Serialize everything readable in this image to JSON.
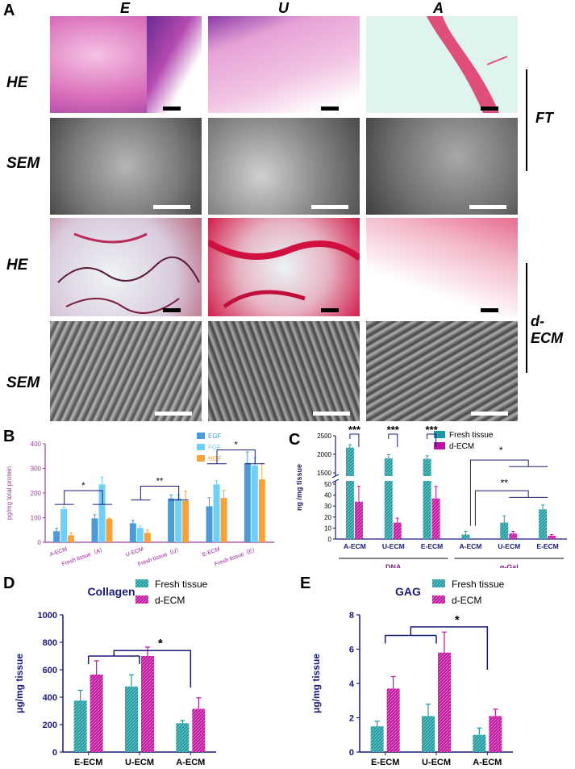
{
  "panel_letters": {
    "a": "A",
    "b": "B",
    "c": "C",
    "d": "D",
    "e": "E"
  },
  "panel_a": {
    "columns": [
      "E",
      "U",
      "A"
    ],
    "rows": [
      "HE",
      "SEM",
      "HE",
      "SEM"
    ],
    "groups": [
      "FT",
      "d-ECM"
    ],
    "colors": {
      "he_fresh": "#c94aa8",
      "he_fresh_light": "#f3b8de",
      "he_decell": "#e0306a",
      "he_bg": "#dff3ef",
      "sem_dark": "#3a3a3a",
      "sem_light": "#b8b8b8"
    }
  },
  "chart_data": [
    {
      "id": "B",
      "type": "bar",
      "ylabel": "pg/mg total protein",
      "ylim": [
        0,
        400
      ],
      "yticks": [
        0,
        100,
        200,
        300,
        400
      ],
      "categories": [
        "A-ECM",
        "Fresh tissue（A）",
        "U-ECM",
        "Fresh tissue（U）",
        "E-ECM",
        "Fresh tissue（E）"
      ],
      "series": [
        {
          "name": "EGF",
          "color": "#4a9bd6",
          "values": [
            45,
            97,
            77,
            178,
            146,
            322
          ],
          "err": [
            12,
            15,
            12,
            15,
            35,
            45
          ]
        },
        {
          "name": "FGF",
          "color": "#6ed0f6",
          "values": [
            135,
            235,
            58,
            178,
            235,
            312
          ],
          "err": [
            8,
            30,
            8,
            15,
            15,
            30
          ]
        },
        {
          "name": "HGF",
          "color": "#f5a23a",
          "values": [
            28,
            95,
            38,
            168,
            180,
            255
          ],
          "err": [
            10,
            3,
            12,
            40,
            30,
            65
          ]
        }
      ],
      "annotations": [
        "*",
        "**",
        "*"
      ]
    },
    {
      "id": "C",
      "type": "bar",
      "ylabel": "ng /mg tissue",
      "yticks_lower": [
        0,
        10,
        20,
        30,
        40,
        50
      ],
      "yticks_upper": [
        1500,
        2000,
        2500
      ],
      "categories": [
        "A-ECM",
        "U-ECM",
        "E-ECM",
        "A-ECM",
        "U-ECM",
        "E-ECM"
      ],
      "groups": [
        "DNA",
        "α-Gal"
      ],
      "series": [
        {
          "name": "Fresh tissue",
          "color": "#1b9aa0",
          "values": [
            2180,
            1890,
            1880,
            4,
            15,
            27
          ],
          "err": [
            80,
            100,
            80,
            3,
            6,
            4
          ]
        },
        {
          "name": "d-ECM",
          "color": "#c0129e",
          "values": [
            34,
            15,
            37,
            0,
            5,
            3
          ],
          "err": [
            14,
            4,
            11,
            0,
            2,
            1
          ]
        }
      ],
      "annotations": [
        "***",
        "***",
        "***",
        "*",
        "**"
      ]
    },
    {
      "id": "D",
      "type": "bar",
      "title": "Collagen",
      "ylabel": "μg/mg tissue",
      "ylim": [
        0,
        1000
      ],
      "yticks": [
        0,
        200,
        400,
        600,
        800,
        1000
      ],
      "categories": [
        "E-ECM",
        "U-ECM",
        "A-ECM"
      ],
      "series": [
        {
          "name": "Fresh tissue",
          "color": "#1b9aa0",
          "values": [
            375,
            478,
            210
          ],
          "err": [
            75,
            85,
            20
          ]
        },
        {
          "name": "d-ECM",
          "color": "#c0129e",
          "values": [
            565,
            700,
            315
          ],
          "err": [
            100,
            65,
            80
          ]
        }
      ],
      "annotations": [
        "*"
      ]
    },
    {
      "id": "E",
      "type": "bar",
      "title": "GAG",
      "ylabel": "μg/mg tissue",
      "ylim": [
        0,
        8
      ],
      "yticks": [
        0,
        2,
        4,
        6,
        8
      ],
      "categories": [
        "E-ECM",
        "U-ECM",
        "A-ECM"
      ],
      "series": [
        {
          "name": "Fresh tissue",
          "color": "#1b9aa0",
          "values": [
            1.5,
            2.1,
            1.0
          ],
          "err": [
            0.3,
            0.7,
            0.4
          ]
        },
        {
          "name": "d-ECM",
          "color": "#c0129e",
          "values": [
            3.7,
            5.8,
            2.1
          ],
          "err": [
            0.7,
            1.2,
            0.4
          ]
        }
      ],
      "annotations": [
        "*"
      ]
    }
  ]
}
